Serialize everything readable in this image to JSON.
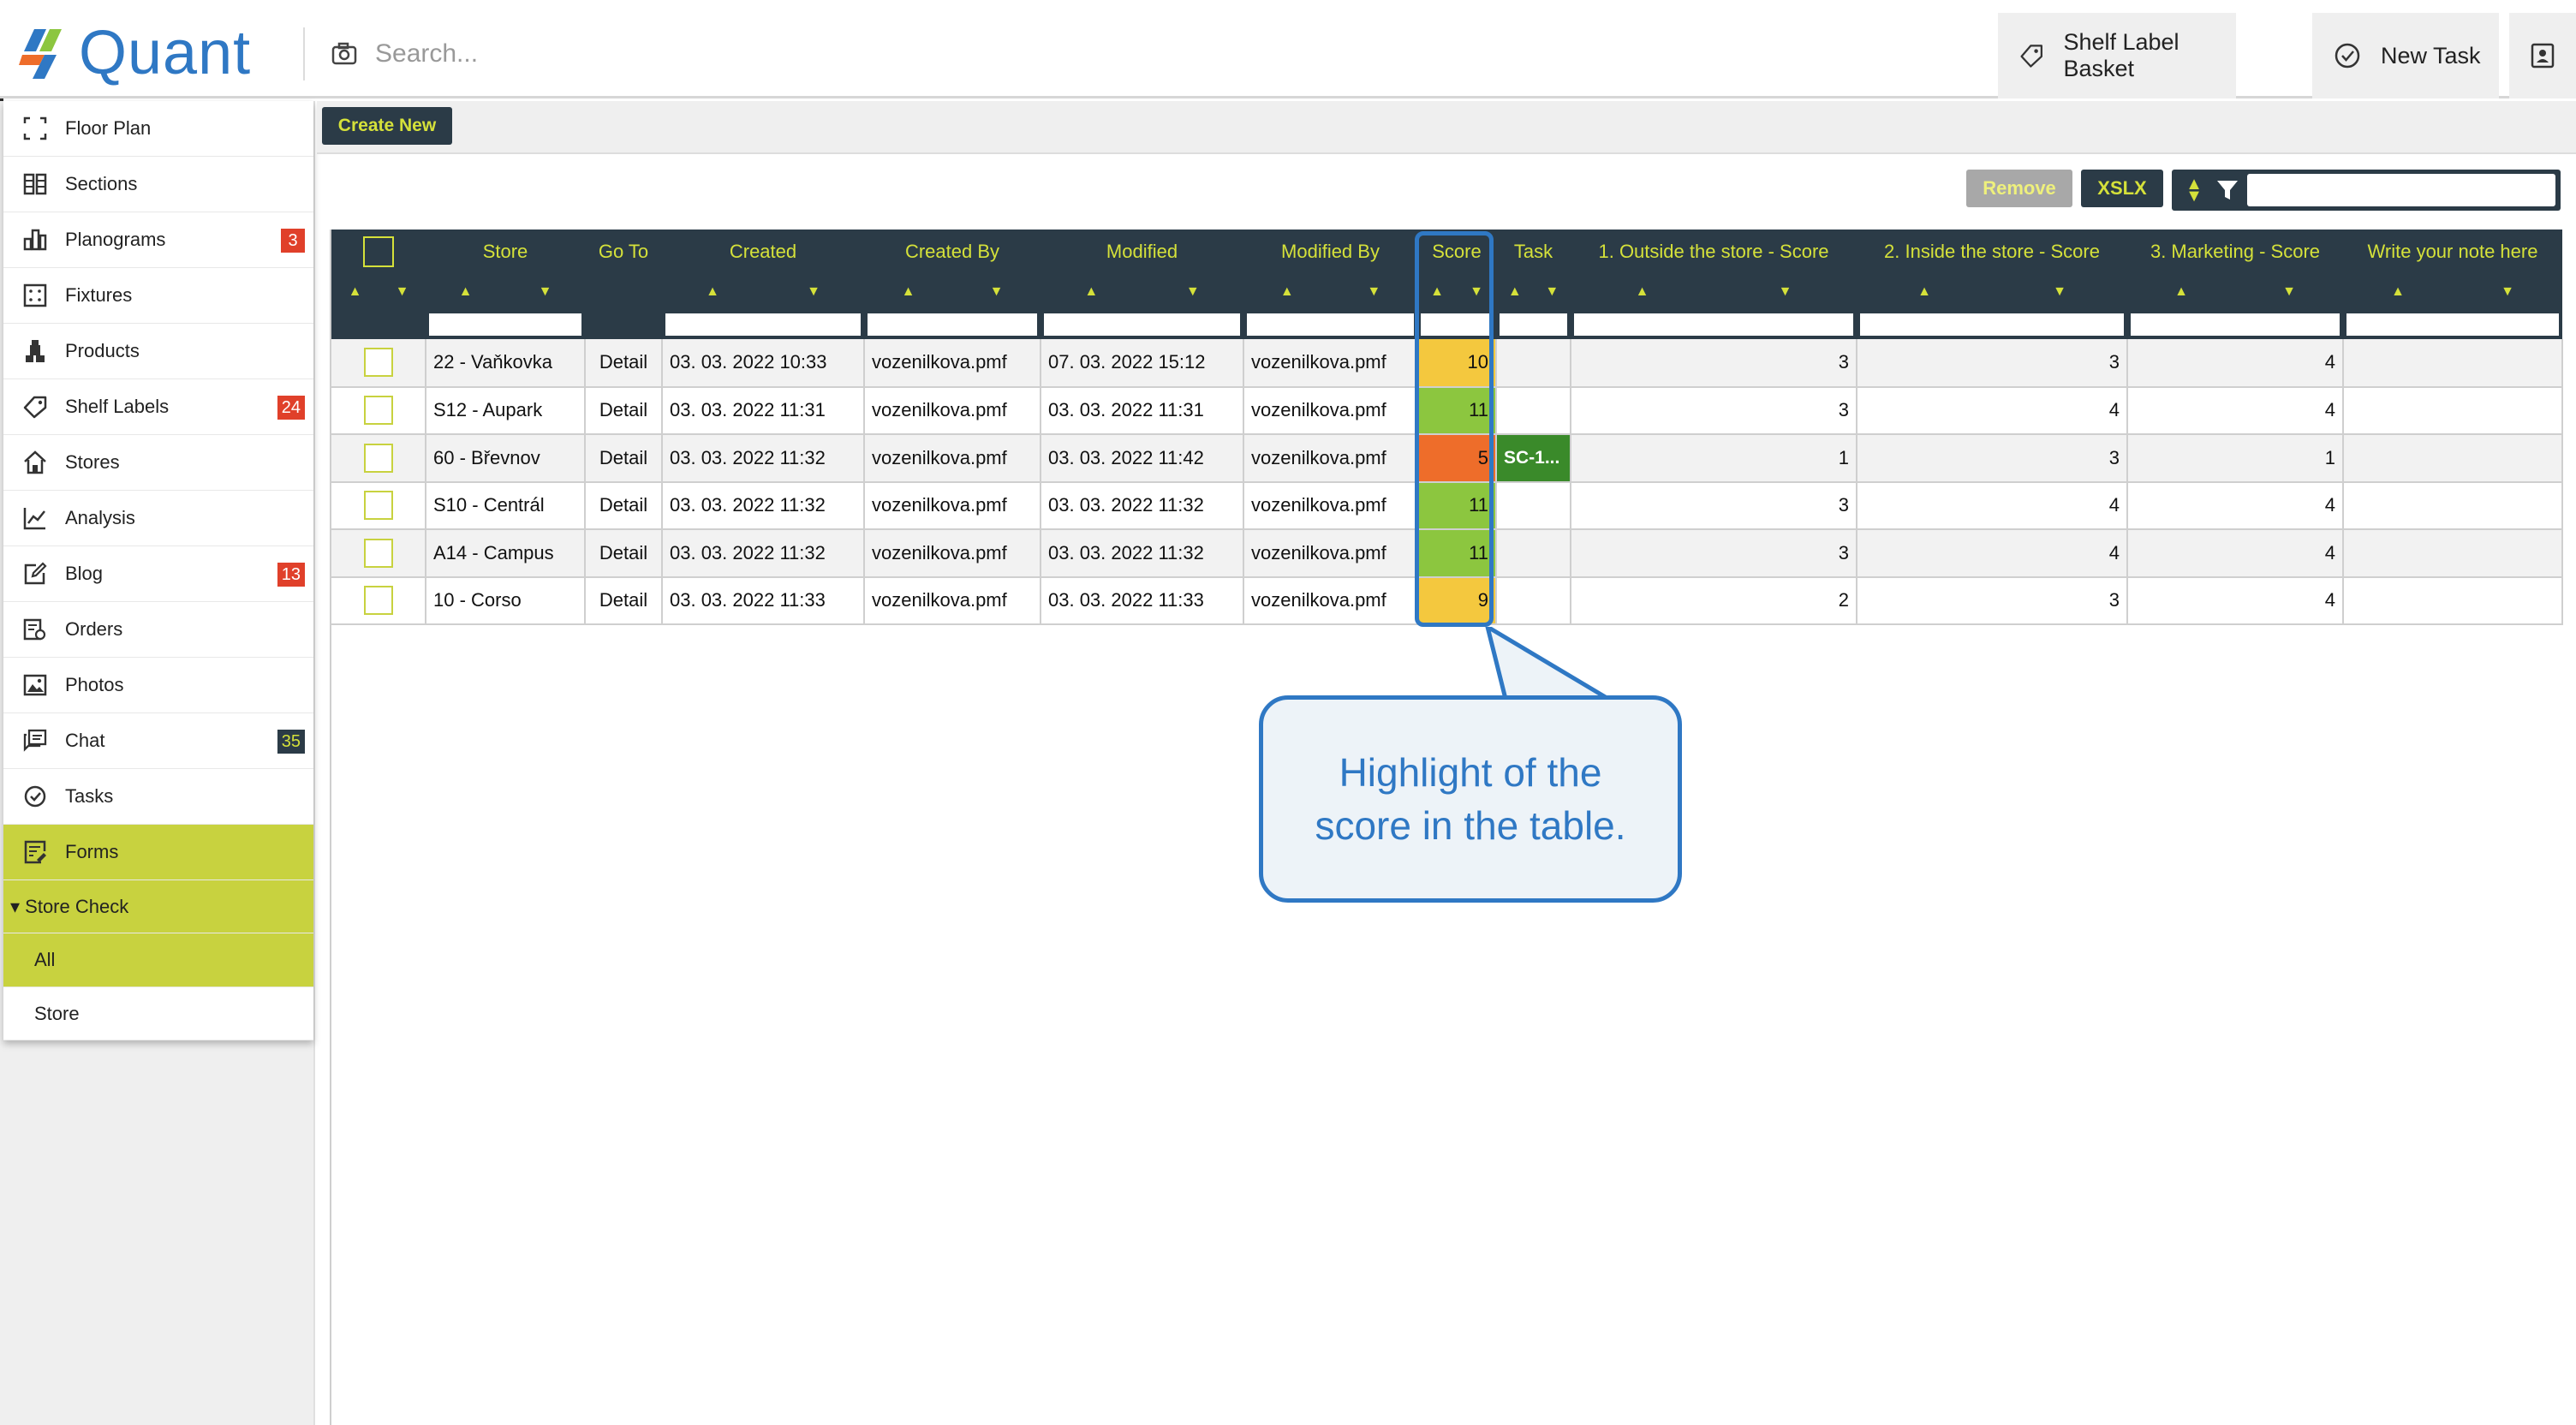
{
  "header": {
    "logo_text": "Quant",
    "search_placeholder": "Search...",
    "shelf_label_basket": "Shelf Label Basket",
    "new_task": "New Task"
  },
  "sidebar": {
    "items": [
      {
        "label": "Floor Plan",
        "icon": "floor-plan-icon"
      },
      {
        "label": "Sections",
        "icon": "sections-icon"
      },
      {
        "label": "Planograms",
        "icon": "planograms-icon",
        "badge": "3"
      },
      {
        "label": "Fixtures",
        "icon": "fixtures-icon"
      },
      {
        "label": "Products",
        "icon": "products-icon"
      },
      {
        "label": "Shelf Labels",
        "icon": "tag-icon",
        "badge": "24"
      },
      {
        "label": "Stores",
        "icon": "store-icon"
      },
      {
        "label": "Analysis",
        "icon": "analysis-icon"
      },
      {
        "label": "Blog",
        "icon": "blog-icon",
        "badge": "13"
      },
      {
        "label": "Orders",
        "icon": "orders-icon"
      },
      {
        "label": "Photos",
        "icon": "photos-icon"
      },
      {
        "label": "Chat",
        "icon": "chat-icon",
        "badge": "35"
      },
      {
        "label": "Tasks",
        "icon": "tasks-icon"
      },
      {
        "label": "Forms",
        "icon": "forms-icon"
      }
    ],
    "submenu_header": "▾ Store Check",
    "submenu_items": [
      "All",
      "Store"
    ]
  },
  "toolbar": {
    "create_new": "Create New",
    "remove": "Remove",
    "export": "XSLX"
  },
  "table": {
    "columns": [
      "",
      "Store",
      "Go To",
      "Created",
      "Created By",
      "Modified",
      "Modified By",
      "Score",
      "Task",
      "1. Outside the store - Score",
      "2. Inside the store - Score",
      "3. Marketing - Score",
      "Write your note here"
    ],
    "rows": [
      {
        "store": "22 - Vaňkovka",
        "goto": "Detail",
        "created": "03. 03. 2022 10:33",
        "created_by": "vozenilkova.pmf",
        "modified": "07. 03. 2022 15:12",
        "modified_by": "vozenilkova.pmf",
        "score": "10",
        "score_color": "yellow",
        "task": "",
        "s1": "3",
        "s2": "3",
        "s3": "4",
        "note": ""
      },
      {
        "store": "S12 - Aupark",
        "goto": "Detail",
        "created": "03. 03. 2022 11:31",
        "created_by": "vozenilkova.pmf",
        "modified": "03. 03. 2022 11:31",
        "modified_by": "vozenilkova.pmf",
        "score": "11",
        "score_color": "green",
        "task": "",
        "s1": "3",
        "s2": "4",
        "s3": "4",
        "note": ""
      },
      {
        "store": "60 - Břevnov",
        "goto": "Detail",
        "created": "03. 03. 2022 11:32",
        "created_by": "vozenilkova.pmf",
        "modified": "03. 03. 2022 11:42",
        "modified_by": "vozenilkova.pmf",
        "score": "5",
        "score_color": "orange",
        "task": "SC-1...",
        "s1": "1",
        "s2": "3",
        "s3": "1",
        "note": ""
      },
      {
        "store": "S10 - Centrál",
        "goto": "Detail",
        "created": "03. 03. 2022 11:32",
        "created_by": "vozenilkova.pmf",
        "modified": "03. 03. 2022 11:32",
        "modified_by": "vozenilkova.pmf",
        "score": "11",
        "score_color": "green",
        "task": "",
        "s1": "3",
        "s2": "4",
        "s3": "4",
        "note": ""
      },
      {
        "store": "A14 - Campus",
        "goto": "Detail",
        "created": "03. 03. 2022 11:32",
        "created_by": "vozenilkova.pmf",
        "modified": "03. 03. 2022 11:32",
        "modified_by": "vozenilkova.pmf",
        "score": "11",
        "score_color": "green",
        "task": "",
        "s1": "3",
        "s2": "4",
        "s3": "4",
        "note": ""
      },
      {
        "store": "10 - Corso",
        "goto": "Detail",
        "created": "03. 03. 2022 11:33",
        "created_by": "vozenilkova.pmf",
        "modified": "03. 03. 2022 11:33",
        "modified_by": "vozenilkova.pmf",
        "score": "9",
        "score_color": "yellow",
        "task": "",
        "s1": "2",
        "s2": "3",
        "s3": "4",
        "note": ""
      }
    ]
  },
  "callout": {
    "text": "Highlight of the score in the table."
  },
  "colors": {
    "brand_blue": "#2f78c4",
    "header_dark": "#2b3b47",
    "accent_lime": "#d5e13a",
    "active_lime": "#c8d23f",
    "score_yellow": "#f4c83e",
    "score_green": "#8cc63f",
    "score_orange": "#ee6d2a",
    "badge_red": "#e0402a"
  }
}
